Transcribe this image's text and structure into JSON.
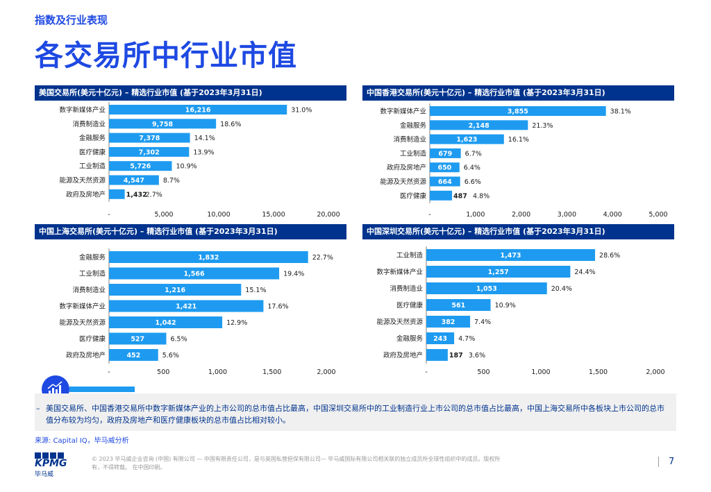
{
  "section_label": "指数及行业表现",
  "page_title": "各交易所中行业市值",
  "chart_data": [
    {
      "type": "bar",
      "orientation": "horizontal",
      "title": "美国交易所(美元十亿元) – 精选行业市值 (基于2023年3月31日)",
      "categories": [
        "数字新媒体产业",
        "消费制造业",
        "金融服务",
        "医疗健康",
        "工业制造",
        "能源及天然资源",
        "政府及房地产"
      ],
      "values": [
        16216,
        9758,
        7378,
        7302,
        5726,
        4547,
        1432
      ],
      "value_labels": [
        "16,216",
        "9,758",
        "7,378",
        "7,302",
        "5,726",
        "4,547",
        "1,432"
      ],
      "percent_labels": [
        "31.0%",
        "18.6%",
        "14.1%",
        "13.9%",
        "10.9%",
        "8.7%",
        "2.7%"
      ],
      "xlim": [
        0,
        20000
      ],
      "xticks": [
        0,
        5000,
        10000,
        15000,
        20000
      ],
      "xtick_labels": [
        "-",
        "5,000",
        "10,000",
        "15,000",
        "20,000"
      ],
      "bar_color": "#1e9bf0"
    },
    {
      "type": "bar",
      "orientation": "horizontal",
      "title": "中国香港交易所(美元十亿元) – 精选行业市值 (基于2023年3月31日)",
      "categories": [
        "数字新媒体产业",
        "金融服务",
        "消费制造业",
        "工业制造",
        "政府及房地产",
        "能源及天然资源",
        "医疗健康"
      ],
      "values": [
        3855,
        2148,
        1623,
        679,
        650,
        664,
        487
      ],
      "value_labels": [
        "3,855",
        "2,148",
        "1,623",
        "679",
        "650",
        "664",
        "487"
      ],
      "percent_labels": [
        "38.1%",
        "21.3%",
        "16.1%",
        "6.7%",
        "6.4%",
        "6.6%",
        "4.8%"
      ],
      "xlim": [
        0,
        5000
      ],
      "xticks": [
        0,
        1000,
        2000,
        3000,
        4000,
        5000
      ],
      "xtick_labels": [
        "-",
        "1,000",
        "2,000",
        "3,000",
        "4,000",
        "5,000"
      ],
      "bar_color": "#1e9bf0"
    },
    {
      "type": "bar",
      "orientation": "horizontal",
      "title": "中国上海交易所(美元十亿元) – 精选行业市值 (基于2023年3月31日)",
      "categories": [
        "金融服务",
        "工业制造",
        "消费制造业",
        "数字新媒体产业",
        "能源及天然资源",
        "医疗健康",
        "政府及房地产"
      ],
      "values": [
        1832,
        1566,
        1216,
        1421,
        1042,
        527,
        452
      ],
      "value_labels": [
        "1,832",
        "1,566",
        "1,216",
        "1,421",
        "1,042",
        "527",
        "452"
      ],
      "percent_labels": [
        "22.7%",
        "19.4%",
        "15.1%",
        "17.6%",
        "12.9%",
        "6.5%",
        "5.6%"
      ],
      "xlim": [
        0,
        2000
      ],
      "xticks": [
        0,
        500,
        1000,
        1500,
        2000
      ],
      "xtick_labels": [
        "-",
        "500",
        "1,000",
        "1,500",
        "2,000"
      ],
      "bar_color": "#1e9bf0"
    },
    {
      "type": "bar",
      "orientation": "horizontal",
      "title": "中国深圳交易所(美元十亿元) – 精选行业市值 (基于2023年3月31日)",
      "categories": [
        "工业制造",
        "数字新媒体产业",
        "消费制造业",
        "医疗健康",
        "能源及天然资源",
        "金融服务",
        "政府及房地产"
      ],
      "values": [
        1473,
        1257,
        1053,
        561,
        382,
        243,
        187
      ],
      "value_labels": [
        "1,473",
        "1,257",
        "1,053",
        "561",
        "382",
        "243",
        "187"
      ],
      "percent_labels": [
        "28.6%",
        "24.4%",
        "20.4%",
        "10.9%",
        "7.4%",
        "4.7%",
        "3.6%"
      ],
      "xlim": [
        0,
        2000
      ],
      "xticks": [
        0,
        500,
        1000,
        1500,
        2000
      ],
      "xtick_labels": [
        "-",
        "500",
        "1,000",
        "1,500",
        "2,000"
      ],
      "bar_color": "#1e9bf0"
    }
  ],
  "insight": {
    "icon": "chart-analysis-icon",
    "bullet": "–",
    "text": "美国交易所、中国香港交易所中数字新媒体产业的上市公司的总市值占比最高，中国深圳交易所中的工业制造行业上市公司的总市值占比最高，中国上海交易所中各板块上市公司的总市值分布较为均匀，政府及房地产和医疗健康板块的总市值占比相对较小。"
  },
  "source": "来源: Capital IQ，毕马威分析",
  "footer": {
    "logo_text": "KPMG",
    "logo_sub": "毕马威",
    "copyright": "© 2023 毕马威企业咨询 (中国) 有限公司 — 中国有限责任公司，是与英国私营担保有限公司— 毕马威国际有限公司相关联的独立成员所全球性组织中的成员。版权所有，不得转载。 在中国印刷。",
    "page_number": "7"
  },
  "colors": {
    "brand_blue": "#1e49e2",
    "header_navy": "#00338d",
    "bar_cyan": "#1e9bf0"
  }
}
